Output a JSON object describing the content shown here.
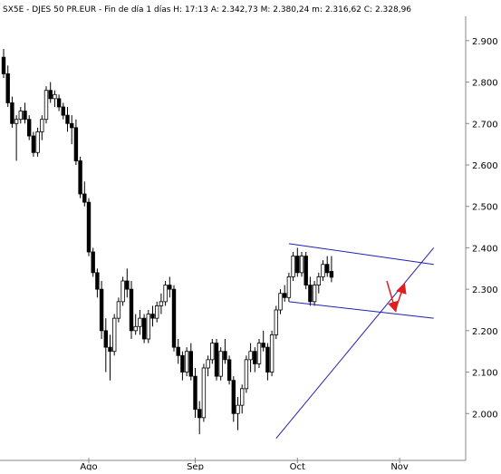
{
  "header": {
    "text": "SX5E - DJES 50 PR.EUR - Fin de día 1 días  H: 17:13  A: 2.342,73  M: 2.380,24  m: 2.316,62  C: 2.328,96"
  },
  "colors": {
    "background": "#ffffff",
    "candle_up_fill": "#ffffff",
    "candle_down_fill": "#000000",
    "candle_outline": "#000000",
    "trendline": "#1f1fb5",
    "arrow": "#e02020",
    "grid_tick": "#888888"
  },
  "chart_data": {
    "type": "candlestick",
    "title": "SX5E - DJES 50 PR.EUR - Fin de día 1 días  H: 17:13  A: 2.342,73  M: 2.380,24  m: 2.316,62  C: 2.328,96",
    "xlabel": "",
    "ylabel": "",
    "ylim": [
      1900,
      2950
    ],
    "y_ticks": [
      "2.900",
      "2.800",
      "2.700",
      "2.600",
      "2.500",
      "2.400",
      "2.300",
      "2.200",
      "2.100",
      "2.000"
    ],
    "y_tick_values": [
      2900,
      2800,
      2700,
      2600,
      2500,
      2400,
      2300,
      2200,
      2100,
      2000
    ],
    "x_ticks": [
      {
        "label": "Ago",
        "index": 20
      },
      {
        "label": "Sep",
        "index": 45
      },
      {
        "label": "Oct",
        "index": 69
      },
      {
        "label": "Nov",
        "index": 93
      }
    ],
    "grid": false,
    "candles": [
      [
        2860,
        2880,
        2810,
        2820
      ],
      [
        2820,
        2840,
        2740,
        2750
      ],
      [
        2750,
        2765,
        2690,
        2700
      ],
      [
        2700,
        2720,
        2610,
        2710
      ],
      [
        2710,
        2740,
        2700,
        2730
      ],
      [
        2730,
        2750,
        2700,
        2710
      ],
      [
        2710,
        2720,
        2660,
        2670
      ],
      [
        2670,
        2680,
        2620,
        2630
      ],
      [
        2630,
        2690,
        2620,
        2680
      ],
      [
        2680,
        2720,
        2660,
        2710
      ],
      [
        2710,
        2790,
        2700,
        2780
      ],
      [
        2780,
        2800,
        2750,
        2760
      ],
      [
        2760,
        2780,
        2740,
        2770
      ],
      [
        2760,
        2770,
        2730,
        2740
      ],
      [
        2740,
        2750,
        2710,
        2720
      ],
      [
        2720,
        2740,
        2680,
        2700
      ],
      [
        2700,
        2720,
        2650,
        2690
      ],
      [
        2690,
        2710,
        2600,
        2610
      ],
      [
        2610,
        2620,
        2520,
        2530
      ],
      [
        2530,
        2560,
        2500,
        2510
      ],
      [
        2510,
        2520,
        2380,
        2390
      ],
      [
        2390,
        2400,
        2330,
        2340
      ],
      [
        2340,
        2350,
        2280,
        2300
      ],
      [
        2300,
        2320,
        2180,
        2200
      ],
      [
        2200,
        2230,
        2100,
        2160
      ],
      [
        2160,
        2190,
        2080,
        2150
      ],
      [
        2150,
        2240,
        2140,
        2230
      ],
      [
        2230,
        2280,
        2220,
        2270
      ],
      [
        2270,
        2330,
        2260,
        2320
      ],
      [
        2320,
        2350,
        2280,
        2300
      ],
      [
        2300,
        2320,
        2180,
        2200
      ],
      [
        2200,
        2240,
        2190,
        2210
      ],
      [
        2210,
        2250,
        2190,
        2230
      ],
      [
        2230,
        2240,
        2170,
        2180
      ],
      [
        2180,
        2250,
        2170,
        2240
      ],
      [
        2240,
        2260,
        2210,
        2230
      ],
      [
        2230,
        2270,
        2220,
        2260
      ],
      [
        2260,
        2290,
        2240,
        2270
      ],
      [
        2270,
        2320,
        2260,
        2310
      ],
      [
        2310,
        2330,
        2280,
        2300
      ],
      [
        2300,
        2310,
        2150,
        2160
      ],
      [
        2160,
        2180,
        2120,
        2140
      ],
      [
        2140,
        2150,
        2080,
        2100
      ],
      [
        2100,
        2160,
        2090,
        2150
      ],
      [
        2150,
        2170,
        2080,
        2090
      ],
      [
        2090,
        2110,
        1990,
        2010
      ],
      [
        2010,
        2030,
        1950,
        1990
      ],
      [
        1990,
        2120,
        1980,
        2110
      ],
      [
        2110,
        2140,
        2090,
        2130
      ],
      [
        2130,
        2180,
        2120,
        2170
      ],
      [
        2170,
        2180,
        2080,
        2090
      ],
      [
        2090,
        2160,
        2080,
        2150
      ],
      [
        2150,
        2180,
        2120,
        2130
      ],
      [
        2130,
        2140,
        2070,
        2080
      ],
      [
        2080,
        2090,
        1980,
        2000
      ],
      [
        2000,
        2040,
        1960,
        2020
      ],
      [
        2020,
        2070,
        2000,
        2060
      ],
      [
        2060,
        2140,
        2050,
        2130
      ],
      [
        2130,
        2170,
        2100,
        2150
      ],
      [
        2150,
        2160,
        2100,
        2120
      ],
      [
        2120,
        2180,
        2110,
        2170
      ],
      [
        2170,
        2200,
        2150,
        2160
      ],
      [
        2160,
        2170,
        2080,
        2100
      ],
      [
        2100,
        2200,
        2090,
        2190
      ],
      [
        2190,
        2260,
        2180,
        2250
      ],
      [
        2250,
        2300,
        2240,
        2290
      ],
      [
        2290,
        2310,
        2270,
        2280
      ],
      [
        2280,
        2340,
        2270,
        2330
      ],
      [
        2330,
        2390,
        2320,
        2380
      ],
      [
        2380,
        2400,
        2330,
        2340
      ],
      [
        2340,
        2390,
        2330,
        2380
      ],
      [
        2380,
        2390,
        2300,
        2310
      ],
      [
        2310,
        2330,
        2260,
        2270
      ],
      [
        2270,
        2320,
        2260,
        2310
      ],
      [
        2310,
        2340,
        2290,
        2330
      ],
      [
        2330,
        2370,
        2320,
        2360
      ],
      [
        2360,
        2380,
        2330,
        2340
      ],
      [
        2343,
        2380,
        2317,
        2329
      ]
    ],
    "annotations": {
      "trendlines": [
        {
          "from": [
            64,
            1940
          ],
          "to": [
            101,
            2400
          ]
        },
        {
          "from": [
            67,
            2410
          ],
          "to": [
            101,
            2360
          ]
        },
        {
          "from": [
            67,
            2270
          ],
          "to": [
            101,
            2230
          ]
        }
      ],
      "arrows": [
        {
          "from": [
            90,
            2320
          ],
          "to": [
            92,
            2250
          ],
          "head": "end"
        },
        {
          "from": [
            92,
            2250
          ],
          "to": [
            94,
            2310
          ],
          "head": "end"
        }
      ]
    }
  }
}
